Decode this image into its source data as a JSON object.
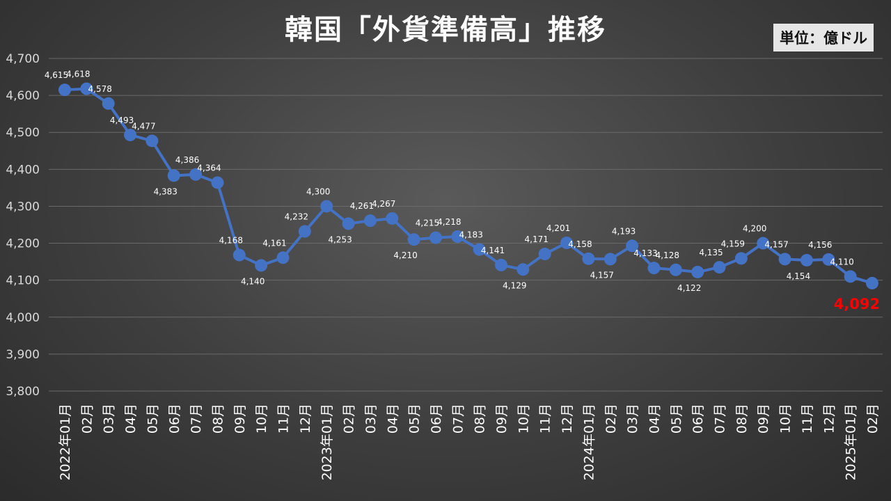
{
  "header": {
    "title": "韓国「外貨準備高」推移",
    "unit_label": "単位：億ドル"
  },
  "chart_data": {
    "type": "line",
    "title": "韓国「外貨準備高」推移",
    "unit": "単位：億ドル",
    "ylim": [
      3800,
      4700
    ],
    "yticks": [
      "3,800",
      "3,900",
      "4,000",
      "4,100",
      "4,200",
      "4,300",
      "4,400",
      "4,500",
      "4,600",
      "4,700"
    ],
    "grid": true,
    "legend": "none",
    "categories": [
      "2022年01月",
      "02月",
      "03月",
      "04月",
      "05月",
      "06月",
      "07月",
      "08月",
      "09月",
      "10月",
      "11月",
      "12月",
      "2023年01月",
      "02月",
      "03月",
      "04月",
      "05月",
      "06月",
      "07月",
      "08月",
      "09月",
      "10月",
      "11月",
      "12月",
      "2024年01月",
      "02月",
      "03月",
      "04月",
      "05月",
      "06月",
      "07月",
      "08月",
      "09月",
      "10月",
      "11月",
      "12月",
      "2025年01月",
      "02月"
    ],
    "values": [
      4615,
      4618,
      4578,
      4493,
      4477,
      4383,
      4386,
      4364,
      4168,
      4140,
      4161,
      4232,
      4300,
      4253,
      4261,
      4267,
      4210,
      4215,
      4218,
      4183,
      4141,
      4129,
      4171,
      4201,
      4158,
      4157,
      4193,
      4133,
      4128,
      4122,
      4135,
      4159,
      4200,
      4157,
      4154,
      4156,
      4110,
      4092
    ],
    "data_labels": [
      "4,615",
      "4,618",
      "4,578",
      "4,493",
      "4,477",
      "4,383",
      "4,386",
      "4,364",
      "4,168",
      "4,140",
      "4,161",
      "4,232",
      "4,300",
      "4,253",
      "4,261",
      "4,267",
      "4,210",
      "4,215",
      "4,218",
      "4,183",
      "4,141",
      "4,129",
      "4,171",
      "4,201",
      "4,158",
      "4,157",
      "4,193",
      "4,133",
      "4,128",
      "4,122",
      "4,135",
      "4,159",
      "4,200",
      "4,157",
      "4,154",
      "4,156",
      "4,110",
      "4,092"
    ],
    "colors": {
      "line": "#4472c4",
      "highlight_label": "#ff0000"
    }
  }
}
